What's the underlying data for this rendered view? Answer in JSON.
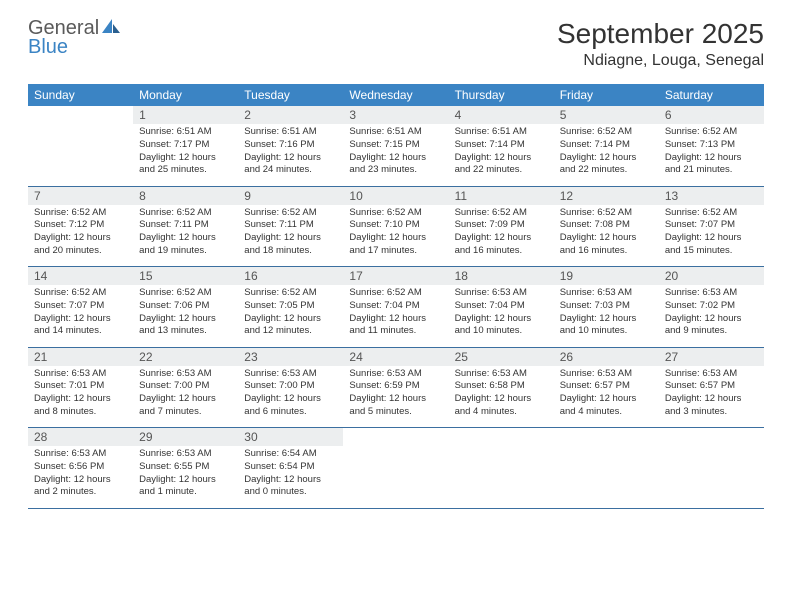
{
  "logo": {
    "general": "General",
    "blue": "Blue"
  },
  "title": "September 2025",
  "location": "Ndiagne, Louga, Senegal",
  "colors": {
    "header_bg": "#3b84c4",
    "header_text": "#ffffff",
    "daynum_bg": "#eceeef",
    "border": "#3b6fa0",
    "logo_gray": "#5a5a5a",
    "logo_blue": "#3b84c4"
  },
  "weekdays": [
    "Sunday",
    "Monday",
    "Tuesday",
    "Wednesday",
    "Thursday",
    "Friday",
    "Saturday"
  ],
  "weeks": [
    [
      null,
      {
        "day": "1",
        "sunrise": "6:51 AM",
        "sunset": "7:17 PM",
        "daylight": "12 hours and 25 minutes."
      },
      {
        "day": "2",
        "sunrise": "6:51 AM",
        "sunset": "7:16 PM",
        "daylight": "12 hours and 24 minutes."
      },
      {
        "day": "3",
        "sunrise": "6:51 AM",
        "sunset": "7:15 PM",
        "daylight": "12 hours and 23 minutes."
      },
      {
        "day": "4",
        "sunrise": "6:51 AM",
        "sunset": "7:14 PM",
        "daylight": "12 hours and 22 minutes."
      },
      {
        "day": "5",
        "sunrise": "6:52 AM",
        "sunset": "7:14 PM",
        "daylight": "12 hours and 22 minutes."
      },
      {
        "day": "6",
        "sunrise": "6:52 AM",
        "sunset": "7:13 PM",
        "daylight": "12 hours and 21 minutes."
      }
    ],
    [
      {
        "day": "7",
        "sunrise": "6:52 AM",
        "sunset": "7:12 PM",
        "daylight": "12 hours and 20 minutes."
      },
      {
        "day": "8",
        "sunrise": "6:52 AM",
        "sunset": "7:11 PM",
        "daylight": "12 hours and 19 minutes."
      },
      {
        "day": "9",
        "sunrise": "6:52 AM",
        "sunset": "7:11 PM",
        "daylight": "12 hours and 18 minutes."
      },
      {
        "day": "10",
        "sunrise": "6:52 AM",
        "sunset": "7:10 PM",
        "daylight": "12 hours and 17 minutes."
      },
      {
        "day": "11",
        "sunrise": "6:52 AM",
        "sunset": "7:09 PM",
        "daylight": "12 hours and 16 minutes."
      },
      {
        "day": "12",
        "sunrise": "6:52 AM",
        "sunset": "7:08 PM",
        "daylight": "12 hours and 16 minutes."
      },
      {
        "day": "13",
        "sunrise": "6:52 AM",
        "sunset": "7:07 PM",
        "daylight": "12 hours and 15 minutes."
      }
    ],
    [
      {
        "day": "14",
        "sunrise": "6:52 AM",
        "sunset": "7:07 PM",
        "daylight": "12 hours and 14 minutes."
      },
      {
        "day": "15",
        "sunrise": "6:52 AM",
        "sunset": "7:06 PM",
        "daylight": "12 hours and 13 minutes."
      },
      {
        "day": "16",
        "sunrise": "6:52 AM",
        "sunset": "7:05 PM",
        "daylight": "12 hours and 12 minutes."
      },
      {
        "day": "17",
        "sunrise": "6:52 AM",
        "sunset": "7:04 PM",
        "daylight": "12 hours and 11 minutes."
      },
      {
        "day": "18",
        "sunrise": "6:53 AM",
        "sunset": "7:04 PM",
        "daylight": "12 hours and 10 minutes."
      },
      {
        "day": "19",
        "sunrise": "6:53 AM",
        "sunset": "7:03 PM",
        "daylight": "12 hours and 10 minutes."
      },
      {
        "day": "20",
        "sunrise": "6:53 AM",
        "sunset": "7:02 PM",
        "daylight": "12 hours and 9 minutes."
      }
    ],
    [
      {
        "day": "21",
        "sunrise": "6:53 AM",
        "sunset": "7:01 PM",
        "daylight": "12 hours and 8 minutes."
      },
      {
        "day": "22",
        "sunrise": "6:53 AM",
        "sunset": "7:00 PM",
        "daylight": "12 hours and 7 minutes."
      },
      {
        "day": "23",
        "sunrise": "6:53 AM",
        "sunset": "7:00 PM",
        "daylight": "12 hours and 6 minutes."
      },
      {
        "day": "24",
        "sunrise": "6:53 AM",
        "sunset": "6:59 PM",
        "daylight": "12 hours and 5 minutes."
      },
      {
        "day": "25",
        "sunrise": "6:53 AM",
        "sunset": "6:58 PM",
        "daylight": "12 hours and 4 minutes."
      },
      {
        "day": "26",
        "sunrise": "6:53 AM",
        "sunset": "6:57 PM",
        "daylight": "12 hours and 4 minutes."
      },
      {
        "day": "27",
        "sunrise": "6:53 AM",
        "sunset": "6:57 PM",
        "daylight": "12 hours and 3 minutes."
      }
    ],
    [
      {
        "day": "28",
        "sunrise": "6:53 AM",
        "sunset": "6:56 PM",
        "daylight": "12 hours and 2 minutes."
      },
      {
        "day": "29",
        "sunrise": "6:53 AM",
        "sunset": "6:55 PM",
        "daylight": "12 hours and 1 minute."
      },
      {
        "day": "30",
        "sunrise": "6:54 AM",
        "sunset": "6:54 PM",
        "daylight": "12 hours and 0 minutes."
      },
      null,
      null,
      null,
      null
    ]
  ],
  "labels": {
    "sunrise": "Sunrise: ",
    "sunset": "Sunset: ",
    "daylight": "Daylight: "
  }
}
